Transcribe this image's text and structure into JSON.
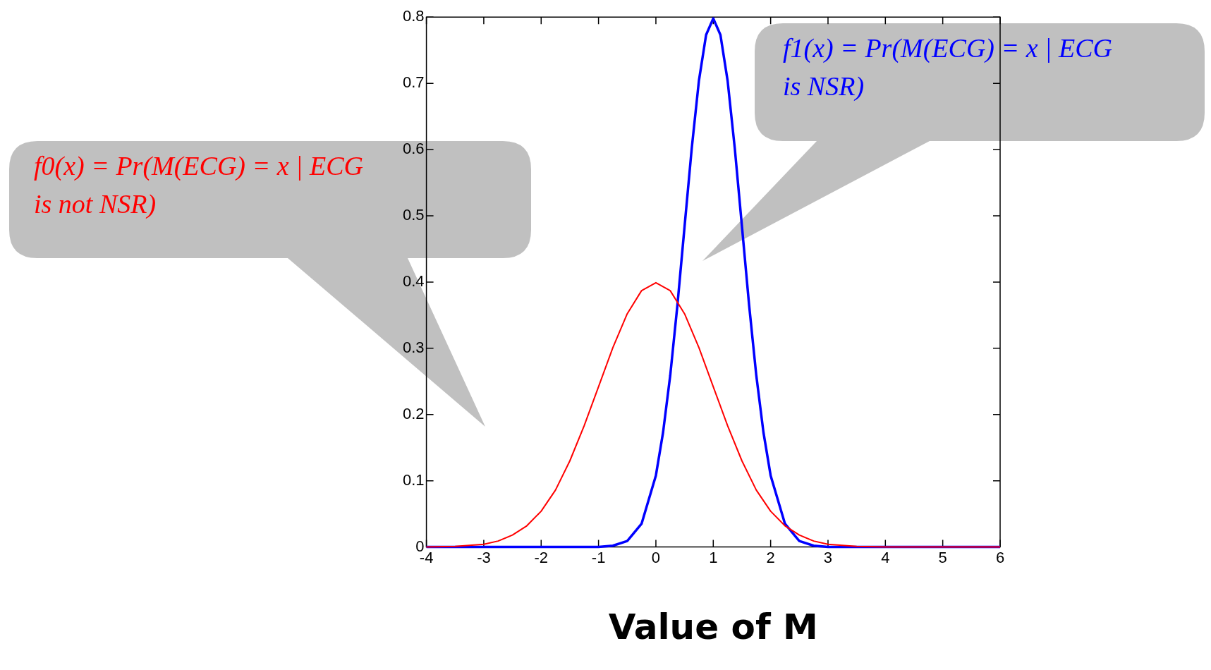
{
  "chart_data": {
    "type": "line",
    "xlabel": "Value of M",
    "xlim": [
      -4,
      6
    ],
    "ylim": [
      0,
      0.8
    ],
    "xticks": [
      -4,
      -3,
      -2,
      -1,
      0,
      1,
      2,
      3,
      4,
      5,
      6
    ],
    "yticks": [
      0,
      0.1,
      0.2,
      0.3,
      0.4,
      0.5,
      0.6,
      0.7,
      0.8
    ],
    "grid": false,
    "legend": false,
    "marker": "none",
    "line_style": "solid",
    "series": [
      {
        "name": "f0(x) = Pr(M(ECG) = x | ECG is not NSR)",
        "color": "#ff0000",
        "x": [
          -4,
          -3.5,
          -3,
          -2.75,
          -2.5,
          -2.25,
          -2,
          -1.75,
          -1.5,
          -1.25,
          -1,
          -0.75,
          -0.5,
          -0.25,
          0,
          0.25,
          0.5,
          0.75,
          1,
          1.25,
          1.5,
          1.75,
          2,
          2.25,
          2.5,
          2.75,
          3,
          3.5,
          4,
          6
        ],
        "values": [
          0,
          0.001,
          0.004,
          0.009,
          0.018,
          0.032,
          0.054,
          0.086,
          0.13,
          0.183,
          0.242,
          0.301,
          0.352,
          0.387,
          0.399,
          0.387,
          0.352,
          0.301,
          0.242,
          0.183,
          0.13,
          0.086,
          0.054,
          0.032,
          0.018,
          0.009,
          0.004,
          0.001,
          0,
          0
        ]
      },
      {
        "name": "f1(x) = Pr(M(ECG) = x | ECG is NSR)",
        "color": "#0000ff",
        "x": [
          -4,
          -1,
          -0.75,
          -0.5,
          -0.25,
          0,
          0.125,
          0.25,
          0.375,
          0.5,
          0.625,
          0.75,
          0.875,
          1,
          1.125,
          1.25,
          1.375,
          1.5,
          1.625,
          1.75,
          1.875,
          2,
          2.25,
          2.5,
          2.75,
          3,
          6
        ],
        "values": [
          0,
          0,
          0.002,
          0.009,
          0.035,
          0.108,
          0.173,
          0.259,
          0.365,
          0.484,
          0.602,
          0.704,
          0.773,
          0.798,
          0.773,
          0.704,
          0.602,
          0.484,
          0.365,
          0.259,
          0.173,
          0.108,
          0.035,
          0.009,
          0.002,
          0,
          0
        ]
      }
    ]
  }
}
